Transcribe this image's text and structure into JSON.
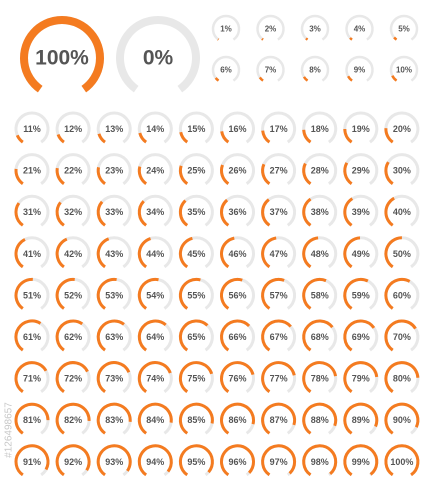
{
  "range": [
    0,
    100
  ],
  "watermark": "#126498657",
  "gauges": [
    {
      "value": 100,
      "label": "100%"
    },
    {
      "value": 0,
      "label": "0%"
    },
    {
      "value": 1,
      "label": "1%"
    },
    {
      "value": 2,
      "label": "2%"
    },
    {
      "value": 3,
      "label": "3%"
    },
    {
      "value": 4,
      "label": "4%"
    },
    {
      "value": 5,
      "label": "5%"
    },
    {
      "value": 6,
      "label": "6%"
    },
    {
      "value": 7,
      "label": "7%"
    },
    {
      "value": 8,
      "label": "8%"
    },
    {
      "value": 9,
      "label": "9%"
    },
    {
      "value": 10,
      "label": "10%"
    },
    {
      "value": 11,
      "label": "11%"
    },
    {
      "value": 12,
      "label": "12%"
    },
    {
      "value": 13,
      "label": "13%"
    },
    {
      "value": 14,
      "label": "14%"
    },
    {
      "value": 15,
      "label": "15%"
    },
    {
      "value": 16,
      "label": "16%"
    },
    {
      "value": 17,
      "label": "17%"
    },
    {
      "value": 18,
      "label": "18%"
    },
    {
      "value": 19,
      "label": "19%"
    },
    {
      "value": 20,
      "label": "20%"
    },
    {
      "value": 21,
      "label": "21%"
    },
    {
      "value": 22,
      "label": "22%"
    },
    {
      "value": 23,
      "label": "23%"
    },
    {
      "value": 24,
      "label": "24%"
    },
    {
      "value": 25,
      "label": "25%"
    },
    {
      "value": 26,
      "label": "26%"
    },
    {
      "value": 27,
      "label": "27%"
    },
    {
      "value": 28,
      "label": "28%"
    },
    {
      "value": 29,
      "label": "29%"
    },
    {
      "value": 30,
      "label": "30%"
    },
    {
      "value": 31,
      "label": "31%"
    },
    {
      "value": 32,
      "label": "32%"
    },
    {
      "value": 33,
      "label": "33%"
    },
    {
      "value": 34,
      "label": "34%"
    },
    {
      "value": 35,
      "label": "35%"
    },
    {
      "value": 36,
      "label": "36%"
    },
    {
      "value": 37,
      "label": "37%"
    },
    {
      "value": 38,
      "label": "38%"
    },
    {
      "value": 39,
      "label": "39%"
    },
    {
      "value": 40,
      "label": "40%"
    },
    {
      "value": 41,
      "label": "41%"
    },
    {
      "value": 42,
      "label": "42%"
    },
    {
      "value": 43,
      "label": "43%"
    },
    {
      "value": 44,
      "label": "44%"
    },
    {
      "value": 45,
      "label": "45%"
    },
    {
      "value": 46,
      "label": "46%"
    },
    {
      "value": 47,
      "label": "47%"
    },
    {
      "value": 48,
      "label": "48%"
    },
    {
      "value": 49,
      "label": "49%"
    },
    {
      "value": 50,
      "label": "50%"
    },
    {
      "value": 51,
      "label": "51%"
    },
    {
      "value": 52,
      "label": "52%"
    },
    {
      "value": 53,
      "label": "53%"
    },
    {
      "value": 54,
      "label": "54%"
    },
    {
      "value": 55,
      "label": "55%"
    },
    {
      "value": 56,
      "label": "56%"
    },
    {
      "value": 57,
      "label": "57%"
    },
    {
      "value": 58,
      "label": "58%"
    },
    {
      "value": 59,
      "label": "59%"
    },
    {
      "value": 60,
      "label": "60%"
    },
    {
      "value": 61,
      "label": "61%"
    },
    {
      "value": 62,
      "label": "62%"
    },
    {
      "value": 63,
      "label": "63%"
    },
    {
      "value": 64,
      "label": "64%"
    },
    {
      "value": 65,
      "label": "65%"
    },
    {
      "value": 66,
      "label": "66%"
    },
    {
      "value": 67,
      "label": "67%"
    },
    {
      "value": 68,
      "label": "68%"
    },
    {
      "value": 69,
      "label": "69%"
    },
    {
      "value": 70,
      "label": "70%"
    },
    {
      "value": 71,
      "label": "71%"
    },
    {
      "value": 72,
      "label": "72%"
    },
    {
      "value": 73,
      "label": "73%"
    },
    {
      "value": 74,
      "label": "74%"
    },
    {
      "value": 75,
      "label": "75%"
    },
    {
      "value": 76,
      "label": "76%"
    },
    {
      "value": 77,
      "label": "77%"
    },
    {
      "value": 78,
      "label": "78%"
    },
    {
      "value": 79,
      "label": "79%"
    },
    {
      "value": 80,
      "label": "80%"
    },
    {
      "value": 81,
      "label": "81%"
    },
    {
      "value": 82,
      "label": "82%"
    },
    {
      "value": 83,
      "label": "83%"
    },
    {
      "value": 84,
      "label": "84%"
    },
    {
      "value": 85,
      "label": "85%"
    },
    {
      "value": 86,
      "label": "86%"
    },
    {
      "value": 87,
      "label": "87%"
    },
    {
      "value": 88,
      "label": "88%"
    },
    {
      "value": 89,
      "label": "89%"
    },
    {
      "value": 90,
      "label": "90%"
    },
    {
      "value": 91,
      "label": "91%"
    },
    {
      "value": 92,
      "label": "92%"
    },
    {
      "value": 93,
      "label": "93%"
    },
    {
      "value": 94,
      "label": "94%"
    },
    {
      "value": 95,
      "label": "95%"
    },
    {
      "value": 96,
      "label": "96%"
    },
    {
      "value": 97,
      "label": "97%"
    },
    {
      "value": 98,
      "label": "98%"
    },
    {
      "value": 99,
      "label": "99%"
    },
    {
      "value": 100,
      "label": "100%"
    }
  ]
}
